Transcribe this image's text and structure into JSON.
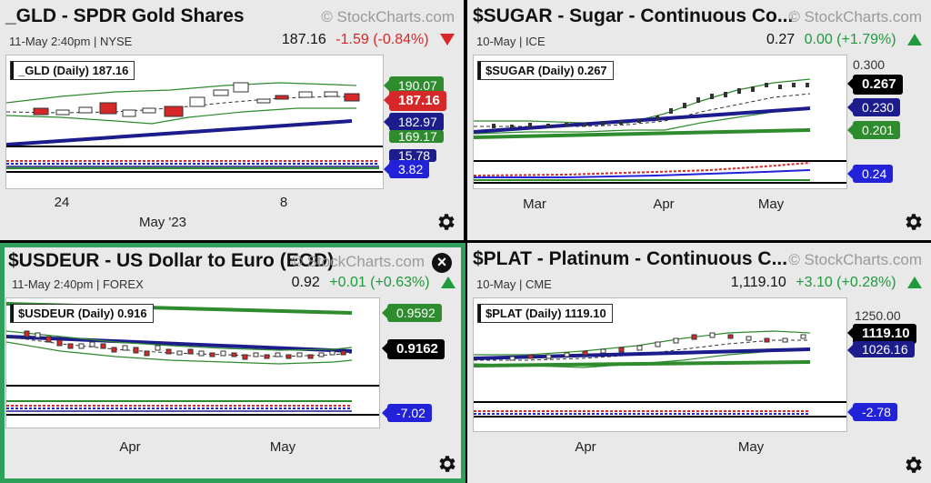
{
  "brand": "© StockCharts.com",
  "panels": {
    "gld": {
      "title": "_GLD - SPDR Gold Shares",
      "date_exchange": "11-May 2:40pm | NYSE",
      "price": "187.16",
      "change": "-1.59 (-0.84%)",
      "direction": "down",
      "chart_label": "_GLD (Daily) 187.16",
      "tags": [
        "190.07",
        "187.16",
        "182.97",
        "169.17",
        "15.78",
        "3.82"
      ],
      "xticks": [
        "24",
        "8"
      ],
      "xsub": "May '23"
    },
    "sugar": {
      "title": "$SUGAR - Sugar - Continuous Co...",
      "date_exchange": "10-May | ICE",
      "price": "0.27",
      "change": "0.00 (+1.79%)",
      "direction": "up",
      "chart_label": "$SUGAR (Daily) 0.267",
      "tags": [
        "0.300",
        "0.267",
        "0.230",
        "0.201",
        "0.24"
      ],
      "xticks": [
        "Mar",
        "Apr",
        "May"
      ]
    },
    "usdeur": {
      "title": "$USDEUR - US Dollar to Euro (EOD)",
      "date_exchange": "11-May 2:40pm | FOREX",
      "price": "0.92",
      "change": "+0.01 (+0.63%)",
      "direction": "up",
      "chart_label": "$USDEUR (Daily) 0.916",
      "tags": [
        "0.9592",
        "0.9162",
        "-7.02"
      ],
      "xticks": [
        "Apr",
        "May"
      ],
      "close_label": "×"
    },
    "plat": {
      "title": "$PLAT - Platinum - Continuous C...",
      "date_exchange": "10-May | CME",
      "price": "1,119.10",
      "change": "+3.10 (+0.28%)",
      "direction": "up",
      "chart_label": "$PLAT (Daily) 1119.10",
      "tags": [
        "1250.00",
        "1119.10",
        "1026.16",
        "-2.78"
      ],
      "xticks": [
        "Apr",
        "May"
      ]
    }
  },
  "colors": {
    "accent_border": "#2f9f5c",
    "up": "#1f9a3c",
    "down": "#d62828",
    "ma_navy": "#1c1c8c",
    "ma_green": "#2e8b2e"
  },
  "icons": {
    "settings": "gear-icon",
    "close": "close-icon",
    "up": "triangle-up-icon",
    "down": "triangle-down-icon"
  }
}
